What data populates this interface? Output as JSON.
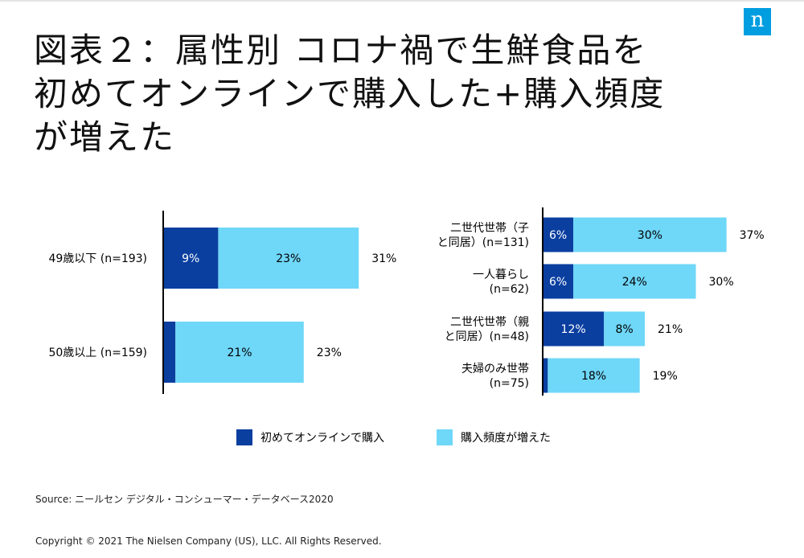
{
  "brand": {
    "logo_letter": "n",
    "color": "#009de0"
  },
  "title_lines": [
    "図表２：属性別 コロナ禍で生鮮食品を",
    "初めてオンラインで購入した+購入頻度",
    "が増えた"
  ],
  "legend": [
    {
      "label": "初めてオンラインで購入",
      "color": "#0a3fa0"
    },
    {
      "label": "購入頻度が増えた",
      "color": "#6fd7f8"
    }
  ],
  "source": "Source: ニールセン デジタル・コンシューマー・データベース2020",
  "copyright": "Copyright © 2021 The Nielsen Company (US), LLC. All Rights Reserved.",
  "chart_data": [
    {
      "type": "bar",
      "orientation": "horizontal",
      "stacked": true,
      "categories": [
        [
          "49歳以下 (n=193)"
        ],
        [
          "50歳以上 (n=159)"
        ]
      ],
      "series": [
        {
          "name": "初めてオンラインで購入",
          "values": [
            9,
            2
          ],
          "color": "#0a3fa0"
        },
        {
          "name": "購入頻度が増えた",
          "values": [
            23,
            21
          ],
          "color": "#6fd7f8"
        }
      ],
      "totals": [
        31,
        23
      ]
    },
    {
      "type": "bar",
      "orientation": "horizontal",
      "stacked": true,
      "categories": [
        [
          "二世代世帯（子",
          "と同居）(n=131)"
        ],
        [
          "一人暮らし",
          "(n=62)"
        ],
        [
          "二世代世帯（親",
          "と同居）(n=48)"
        ],
        [
          "夫婦のみ世帯",
          "(n=75)"
        ]
      ],
      "series": [
        {
          "name": "初めてオンラインで購入",
          "values": [
            6,
            6,
            12,
            1
          ],
          "color": "#0a3fa0"
        },
        {
          "name": "購入頻度が増えた",
          "values": [
            30,
            24,
            8,
            18
          ],
          "color": "#6fd7f8"
        }
      ],
      "totals": [
        37,
        30,
        21,
        19
      ]
    }
  ]
}
